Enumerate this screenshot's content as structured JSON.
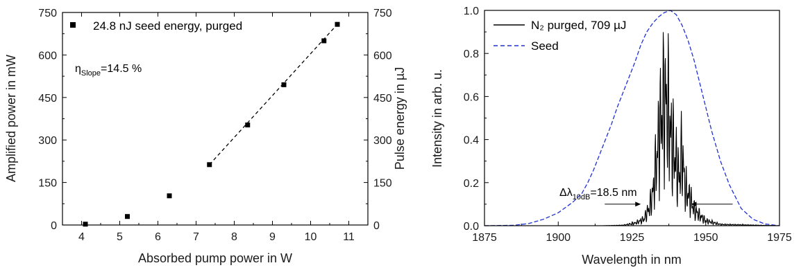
{
  "chart_data": [
    {
      "type": "scatter",
      "xlabel": "Absorbed pump power in W",
      "ylabel": "Amplified power in mW",
      "y2label": "Pulse energy in µJ",
      "xlim": [
        3.5,
        11.5
      ],
      "ylim": [
        0,
        750
      ],
      "y2lim": [
        0,
        750
      ],
      "xticks": [
        "4",
        "5",
        "6",
        "7",
        "8",
        "9",
        "10",
        "11"
      ],
      "yticks": [
        "0",
        "150",
        "300",
        "450",
        "600",
        "750"
      ],
      "y2ticks": [
        "0",
        "150",
        "300",
        "450",
        "600",
        "750"
      ],
      "grid": false,
      "legend_position": "top-left",
      "series": [
        {
          "name": "24.8 nJ seed energy, purged",
          "marker": "square",
          "color": "#000000",
          "x": [
            4.1,
            5.2,
            6.3,
            7.35,
            8.35,
            9.3,
            10.35,
            10.7
          ],
          "y": [
            3,
            30,
            103,
            213,
            353,
            495,
            650,
            708
          ]
        }
      ],
      "fit": {
        "style": "dashed",
        "color": "#000000",
        "x": [
          7.35,
          10.7
        ],
        "y": [
          213,
          708
        ]
      },
      "annotation": {
        "symbol": "η",
        "subscript": "Slope",
        "text": "=14.5 %"
      }
    },
    {
      "type": "line",
      "xlabel": "Wavelength in nm",
      "ylabel": "Intensity in arb. u.",
      "xlim": [
        1875,
        1975
      ],
      "ylim": [
        0,
        1.0
      ],
      "xticks": [
        "1875",
        "1900",
        "1925",
        "1950",
        "1975"
      ],
      "yticks": [
        "0.0",
        "0.2",
        "0.4",
        "0.6",
        "0.8",
        "1.0"
      ],
      "grid": false,
      "legend_position": "top-left",
      "series": [
        {
          "name": "N₂ purged, 709 µJ",
          "style": "solid",
          "color": "#000000",
          "x": [
            1875,
            1915,
            1922,
            1926,
            1929,
            1931,
            1932,
            1933,
            1934,
            1935,
            1936,
            1937,
            1938,
            1939,
            1940,
            1941,
            1942,
            1943,
            1944,
            1945,
            1946,
            1948,
            1950,
            1955,
            1975
          ],
          "y": [
            0,
            0,
            0.004,
            0.02,
            0.05,
            0.15,
            0.25,
            0.45,
            0.7,
            0.88,
            1.0,
            0.98,
            0.75,
            0.62,
            0.5,
            0.38,
            0.6,
            0.3,
            0.25,
            0.2,
            0.13,
            0.08,
            0.04,
            0.01,
            0
          ]
        },
        {
          "name": "Seed",
          "style": "dashed",
          "color": "#1f2fd6",
          "x": [
            1875,
            1885,
            1890,
            1895,
            1900,
            1905,
            1908,
            1910,
            1912,
            1914,
            1916,
            1918,
            1920,
            1922,
            1924,
            1926,
            1928,
            1930,
            1932,
            1934,
            1936,
            1938,
            1940,
            1942,
            1944,
            1946,
            1948,
            1950,
            1952,
            1955,
            1958,
            1962,
            1966,
            1970,
            1975
          ],
          "y": [
            0,
            0.002,
            0.01,
            0.03,
            0.06,
            0.11,
            0.15,
            0.2,
            0.26,
            0.33,
            0.4,
            0.47,
            0.55,
            0.62,
            0.69,
            0.76,
            0.84,
            0.9,
            0.94,
            0.97,
            0.99,
            1.0,
            0.98,
            0.93,
            0.86,
            0.77,
            0.66,
            0.55,
            0.44,
            0.3,
            0.19,
            0.08,
            0.03,
            0.008,
            0
          ]
        }
      ],
      "annotation": {
        "symbol": "Δλ",
        "subscript": "10dB",
        "text": "=18.5 nm",
        "arrow_left_at": 1928,
        "arrow_right_at": 1945
      }
    }
  ]
}
